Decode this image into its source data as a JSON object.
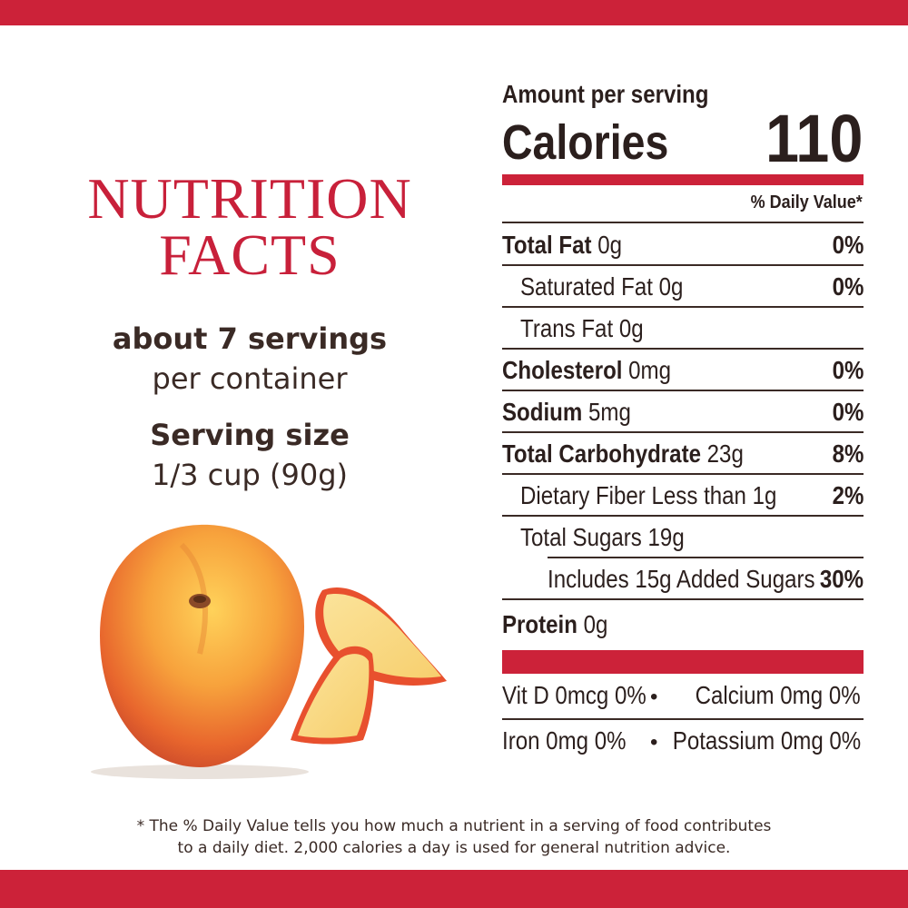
{
  "title": {
    "line1": "NUTRITION",
    "line2": "FACTS"
  },
  "servings": {
    "count_bold": "about 7 servings",
    "count_rest": "per container",
    "size_label": "Serving size",
    "size_value": "1/3 cup (90g)"
  },
  "panel": {
    "amount_per_serving": "Amount per serving",
    "calories_label": "Calories",
    "calories_value": "110",
    "daily_value_header": "% Daily Value*",
    "rows": [
      {
        "name": "Total Fat",
        "amount": " 0g",
        "dv": "0%"
      },
      {
        "name": "Saturated Fat 0g",
        "amount": "",
        "dv": "0%"
      },
      {
        "name": "Trans Fat 0g",
        "amount": "",
        "dv": ""
      },
      {
        "name": "Cholesterol",
        "amount": " 0mg",
        "dv": "0%"
      },
      {
        "name": "Sodium",
        "amount": " 5mg",
        "dv": "0%"
      },
      {
        "name": "Total Carbohydrate",
        "amount": " 23g",
        "dv": "8%"
      },
      {
        "name": "Dietary Fiber Less than 1g",
        "amount": "",
        "dv": "2%"
      },
      {
        "name": "Total Sugars 19g",
        "amount": "",
        "dv": ""
      },
      {
        "name": "Includes 15g Added Sugars",
        "amount": "",
        "dv": "30%"
      },
      {
        "name": "Protein",
        "amount": " 0g",
        "dv": ""
      }
    ],
    "vitamins": {
      "vit_d": "Vit D 0mcg 0%",
      "calcium": "Calcium 0mg 0%",
      "iron": "Iron 0mg 0%",
      "potassium": "Potassium 0mg 0%",
      "bullet": "•"
    }
  },
  "footnote": {
    "line1": "* The % Daily Value tells you how much a nutrient in a serving of food contributes",
    "line2": "to a daily diet. 2,000 calories a day is used for general nutrition advice."
  },
  "colors": {
    "brand_red": "#cc2239",
    "text_dark": "#2b1f1d",
    "peach_orange": "#f39a3a"
  },
  "image": {
    "subject": "peach-with-slices-icon"
  }
}
